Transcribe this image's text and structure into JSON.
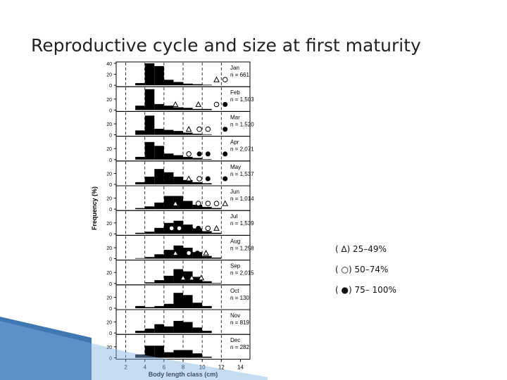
{
  "slide": {
    "title": "Reproductive cycle and size at first maturity"
  },
  "legend": {
    "items": [
      {
        "marker": "open-triangle",
        "label": "( ∆) 25–49%"
      },
      {
        "marker": "open-circle",
        "label": "( ○) 50–74%"
      },
      {
        "marker": "filled-circle",
        "label": "( ●) 75– 100%"
      }
    ]
  },
  "colors": {
    "bars": "#000000",
    "deco": "#1d5fa8"
  },
  "chart_data": {
    "type": "bar",
    "xlabel": "Body length class (cm)",
    "ylabel": "Frequency (%)",
    "x_ticks": [
      "2",
      "4",
      "6",
      "8",
      "10",
      "12",
      "14"
    ],
    "xlim": [
      1,
      15
    ],
    "ylim": [
      0,
      40
    ],
    "bin_starts": [
      3,
      4,
      5,
      6,
      7,
      8,
      9,
      10,
      11
    ],
    "bin_width": 1,
    "panels": [
      {
        "month": "Jan",
        "n": "n = 661",
        "y_ticks": [
          "40",
          "20",
          "0"
        ],
        "values": [
          4,
          40,
          35,
          10,
          6,
          3,
          2,
          1,
          0
        ],
        "maturity": [
          {
            "type": "triangle",
            "x": 11.5
          },
          {
            "type": "circle",
            "x": 12.4
          }
        ]
      },
      {
        "month": "Feb",
        "n": "n = 1,503",
        "y_ticks": [
          "20",
          "0"
        ],
        "values": [
          8,
          38,
          11,
          8,
          5,
          4,
          2,
          2,
          0
        ],
        "maturity": [
          {
            "type": "triangle",
            "x": 7.2
          },
          {
            "type": "triangle",
            "x": 9.6
          },
          {
            "type": "circle",
            "x": 11.5
          },
          {
            "type": "dot",
            "x": 12.4
          }
        ]
      },
      {
        "month": "Mar",
        "n": "n = 1,520",
        "y_ticks": [
          "20",
          "0"
        ],
        "values": [
          8,
          35,
          11,
          9,
          7,
          4,
          2,
          1,
          0
        ],
        "maturity": [
          {
            "type": "triangle",
            "x": 8.6
          },
          {
            "type": "circle",
            "x": 9.7
          },
          {
            "type": "circle",
            "x": 10.6
          },
          {
            "type": "dot",
            "x": 12.4
          }
        ]
      },
      {
        "month": "Apr",
        "n": "n = 2,071",
        "y_ticks": [
          "20",
          "0"
        ],
        "values": [
          5,
          32,
          25,
          11,
          8,
          5,
          3,
          1,
          0
        ],
        "maturity": [
          {
            "type": "circle",
            "x": 8.6
          },
          {
            "type": "dot",
            "x": 9.7
          },
          {
            "type": "dot",
            "x": 10.6
          },
          {
            "type": "dot",
            "x": 12.4
          }
        ]
      },
      {
        "month": "May",
        "n": "n = 1,537",
        "y_ticks": [
          "20",
          "0"
        ],
        "values": [
          4,
          14,
          28,
          22,
          14,
          8,
          4,
          2,
          0
        ],
        "maturity": [
          {
            "type": "triangle",
            "x": 8.6
          },
          {
            "type": "circle",
            "x": 9.7
          },
          {
            "type": "dot",
            "x": 10.6
          },
          {
            "type": "dot",
            "x": 12.4
          }
        ]
      },
      {
        "month": "Jun",
        "n": "n = 1,014",
        "y_ticks": [
          "20",
          "0"
        ],
        "values": [
          2,
          5,
          12,
          24,
          24,
          15,
          8,
          4,
          2
        ],
        "maturity": [
          {
            "type": "triangle",
            "x": 7.2
          },
          {
            "type": "circle",
            "x": 9.6
          },
          {
            "type": "circle",
            "x": 10.6
          },
          {
            "type": "circle",
            "x": 11.5
          },
          {
            "type": "triangle",
            "x": 12.4
          }
        ]
      },
      {
        "month": "Jul",
        "n": "n = 1,539",
        "y_ticks": [
          "20",
          "0"
        ],
        "values": [
          2,
          4,
          11,
          20,
          24,
          17,
          10,
          5,
          2
        ],
        "maturity": [
          {
            "type": "circle",
            "x": 6.8
          },
          {
            "type": "circle",
            "x": 7.6
          },
          {
            "type": "dot",
            "x": 8.8
          },
          {
            "type": "dot",
            "x": 9.6
          },
          {
            "type": "circle",
            "x": 10.6
          },
          {
            "type": "triangle",
            "x": 11.5
          }
        ]
      },
      {
        "month": "Aug",
        "n": "n = 1,258",
        "y_ticks": [
          "20",
          "0"
        ],
        "values": [
          1,
          3,
          8,
          16,
          24,
          20,
          12,
          5,
          2
        ],
        "maturity": [
          {
            "type": "circle",
            "x": 8.6
          },
          {
            "type": "dot",
            "x": 9.5
          },
          {
            "type": "triangle",
            "x": 7.2
          },
          {
            "type": "triangle",
            "x": 10.4
          }
        ]
      },
      {
        "month": "Sep",
        "n": "n = 2,015",
        "y_ticks": [
          "20",
          "0"
        ],
        "values": [
          0,
          2,
          6,
          14,
          26,
          22,
          12,
          4,
          1
        ],
        "maturity": [
          {
            "type": "triangle",
            "x": 8.0
          },
          {
            "type": "triangle",
            "x": 8.9
          },
          {
            "type": "triangle",
            "x": 9.9
          }
        ]
      },
      {
        "month": "Oct",
        "n": "n = 130",
        "y_ticks": [
          "20",
          "0"
        ],
        "values": [
          4,
          2,
          4,
          8,
          28,
          24,
          10,
          4,
          0
        ],
        "maturity": []
      },
      {
        "month": "Nov",
        "n": "n = 819",
        "y_ticks": [
          "20",
          "0"
        ],
        "values": [
          4,
          8,
          16,
          12,
          22,
          20,
          10,
          4,
          0
        ],
        "maturity": []
      },
      {
        "month": "Dec",
        "n": "n = 282",
        "y_ticks": [
          "20",
          "0"
        ],
        "values": [
          6,
          22,
          22,
          10,
          14,
          14,
          8,
          2,
          0
        ],
        "maturity": []
      }
    ]
  }
}
